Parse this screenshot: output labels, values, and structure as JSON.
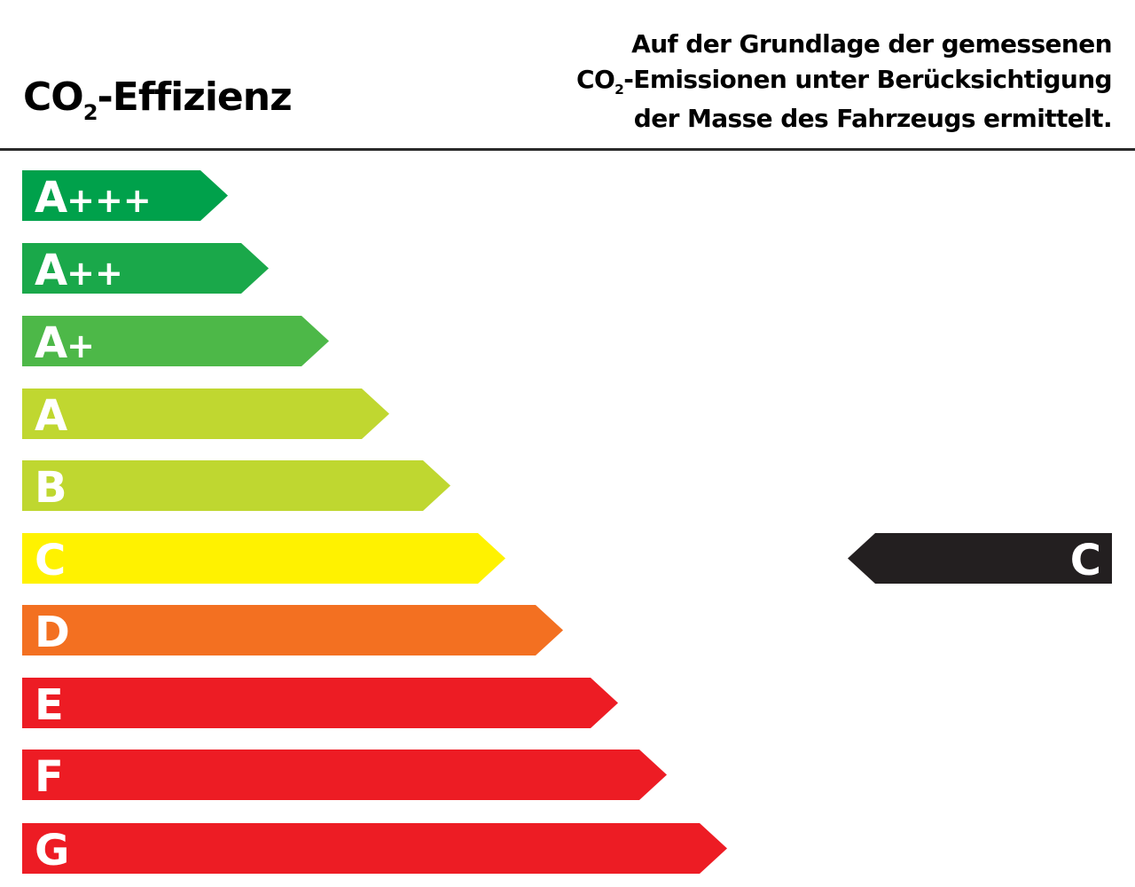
{
  "header": {
    "title_main": "CO",
    "title_sub": "2",
    "title_rest": "-Effizienz",
    "note_line1": "Auf der Grundlage der gemessenen",
    "note_line2_main": "CO",
    "note_line2_sub": "2",
    "note_line2_rest": "-Emissionen unter Berücksichtigung",
    "note_line3": "der Masse des Fahrzeugs ermittelt."
  },
  "classes": [
    {
      "letter": "A",
      "plus": "+++",
      "color": "#00a14b"
    },
    {
      "letter": "A",
      "plus": "++",
      "color": "#1aa84a"
    },
    {
      "letter": "A",
      "plus": "+",
      "color": "#4db848"
    },
    {
      "letter": "A",
      "plus": "",
      "color": "#c0d730"
    },
    {
      "letter": "B",
      "plus": "",
      "color": "#bfd730"
    },
    {
      "letter": "C",
      "plus": "",
      "color": "#fff200"
    },
    {
      "letter": "D",
      "plus": "",
      "color": "#f37021"
    },
    {
      "letter": "E",
      "plus": "",
      "color": "#ed1c24"
    },
    {
      "letter": "F",
      "plus": "",
      "color": "#ed1c24"
    },
    {
      "letter": "G",
      "plus": "",
      "color": "#ed1c24"
    }
  ],
  "indicator": {
    "label": "C",
    "color": "#231f20"
  }
}
